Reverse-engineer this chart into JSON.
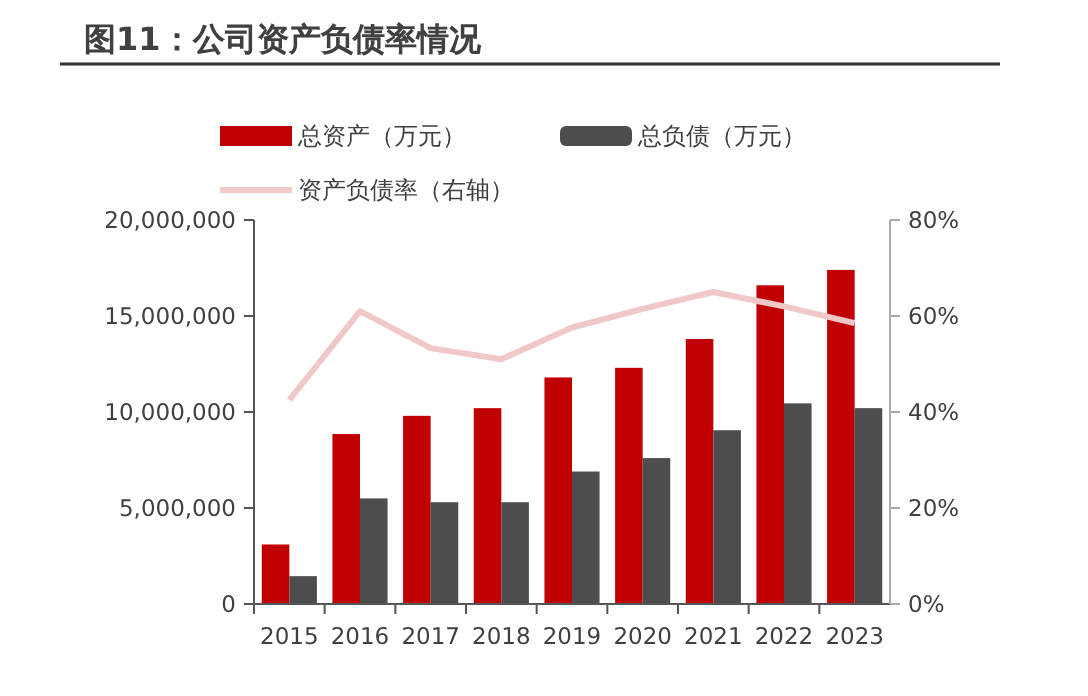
{
  "chart_data": {
    "type": "bar",
    "title": "图11：公司资产负债率情况",
    "categories": [
      "2015",
      "2016",
      "2017",
      "2018",
      "2019",
      "2020",
      "2021",
      "2022",
      "2023"
    ],
    "series": [
      {
        "name": "总资产（万元）",
        "color": "#c00000",
        "values": [
          3100000,
          8850000,
          9800000,
          10200000,
          11800000,
          12300000,
          13800000,
          16600000,
          17400000
        ]
      },
      {
        "name": "总负债（万元）",
        "color": "#4d4d4f",
        "values": [
          1450000,
          5500000,
          5300000,
          5300000,
          6900000,
          7600000,
          9050000,
          10450000,
          10200000
        ]
      },
      {
        "name": "资产负债率（右轴）",
        "type": "line",
        "axis": "y2",
        "color": "#f0c8c8",
        "values": [
          42.5,
          61,
          53.3,
          51,
          57.6,
          61.5,
          65,
          62,
          58.5
        ]
      }
    ],
    "ylim": [
      0,
      20000000
    ],
    "yticks": [
      {
        "value": 0,
        "label": "0"
      },
      {
        "value": 5000000,
        "label": "5,000,000"
      },
      {
        "value": 10000000,
        "label": "10,000,000"
      },
      {
        "value": 15000000,
        "label": "15,000,000"
      },
      {
        "value": 20000000,
        "label": "20,000,000"
      }
    ],
    "y2lim": [
      0,
      80
    ],
    "y2ticks": [
      {
        "value": 0,
        "label": "0%"
      },
      {
        "value": 20,
        "label": "20%"
      },
      {
        "value": 40,
        "label": "40%"
      },
      {
        "value": 60,
        "label": "60%"
      },
      {
        "value": 80,
        "label": "80%"
      }
    ],
    "legend": "top",
    "grid": false,
    "marker": "none",
    "line_style": "solid"
  }
}
